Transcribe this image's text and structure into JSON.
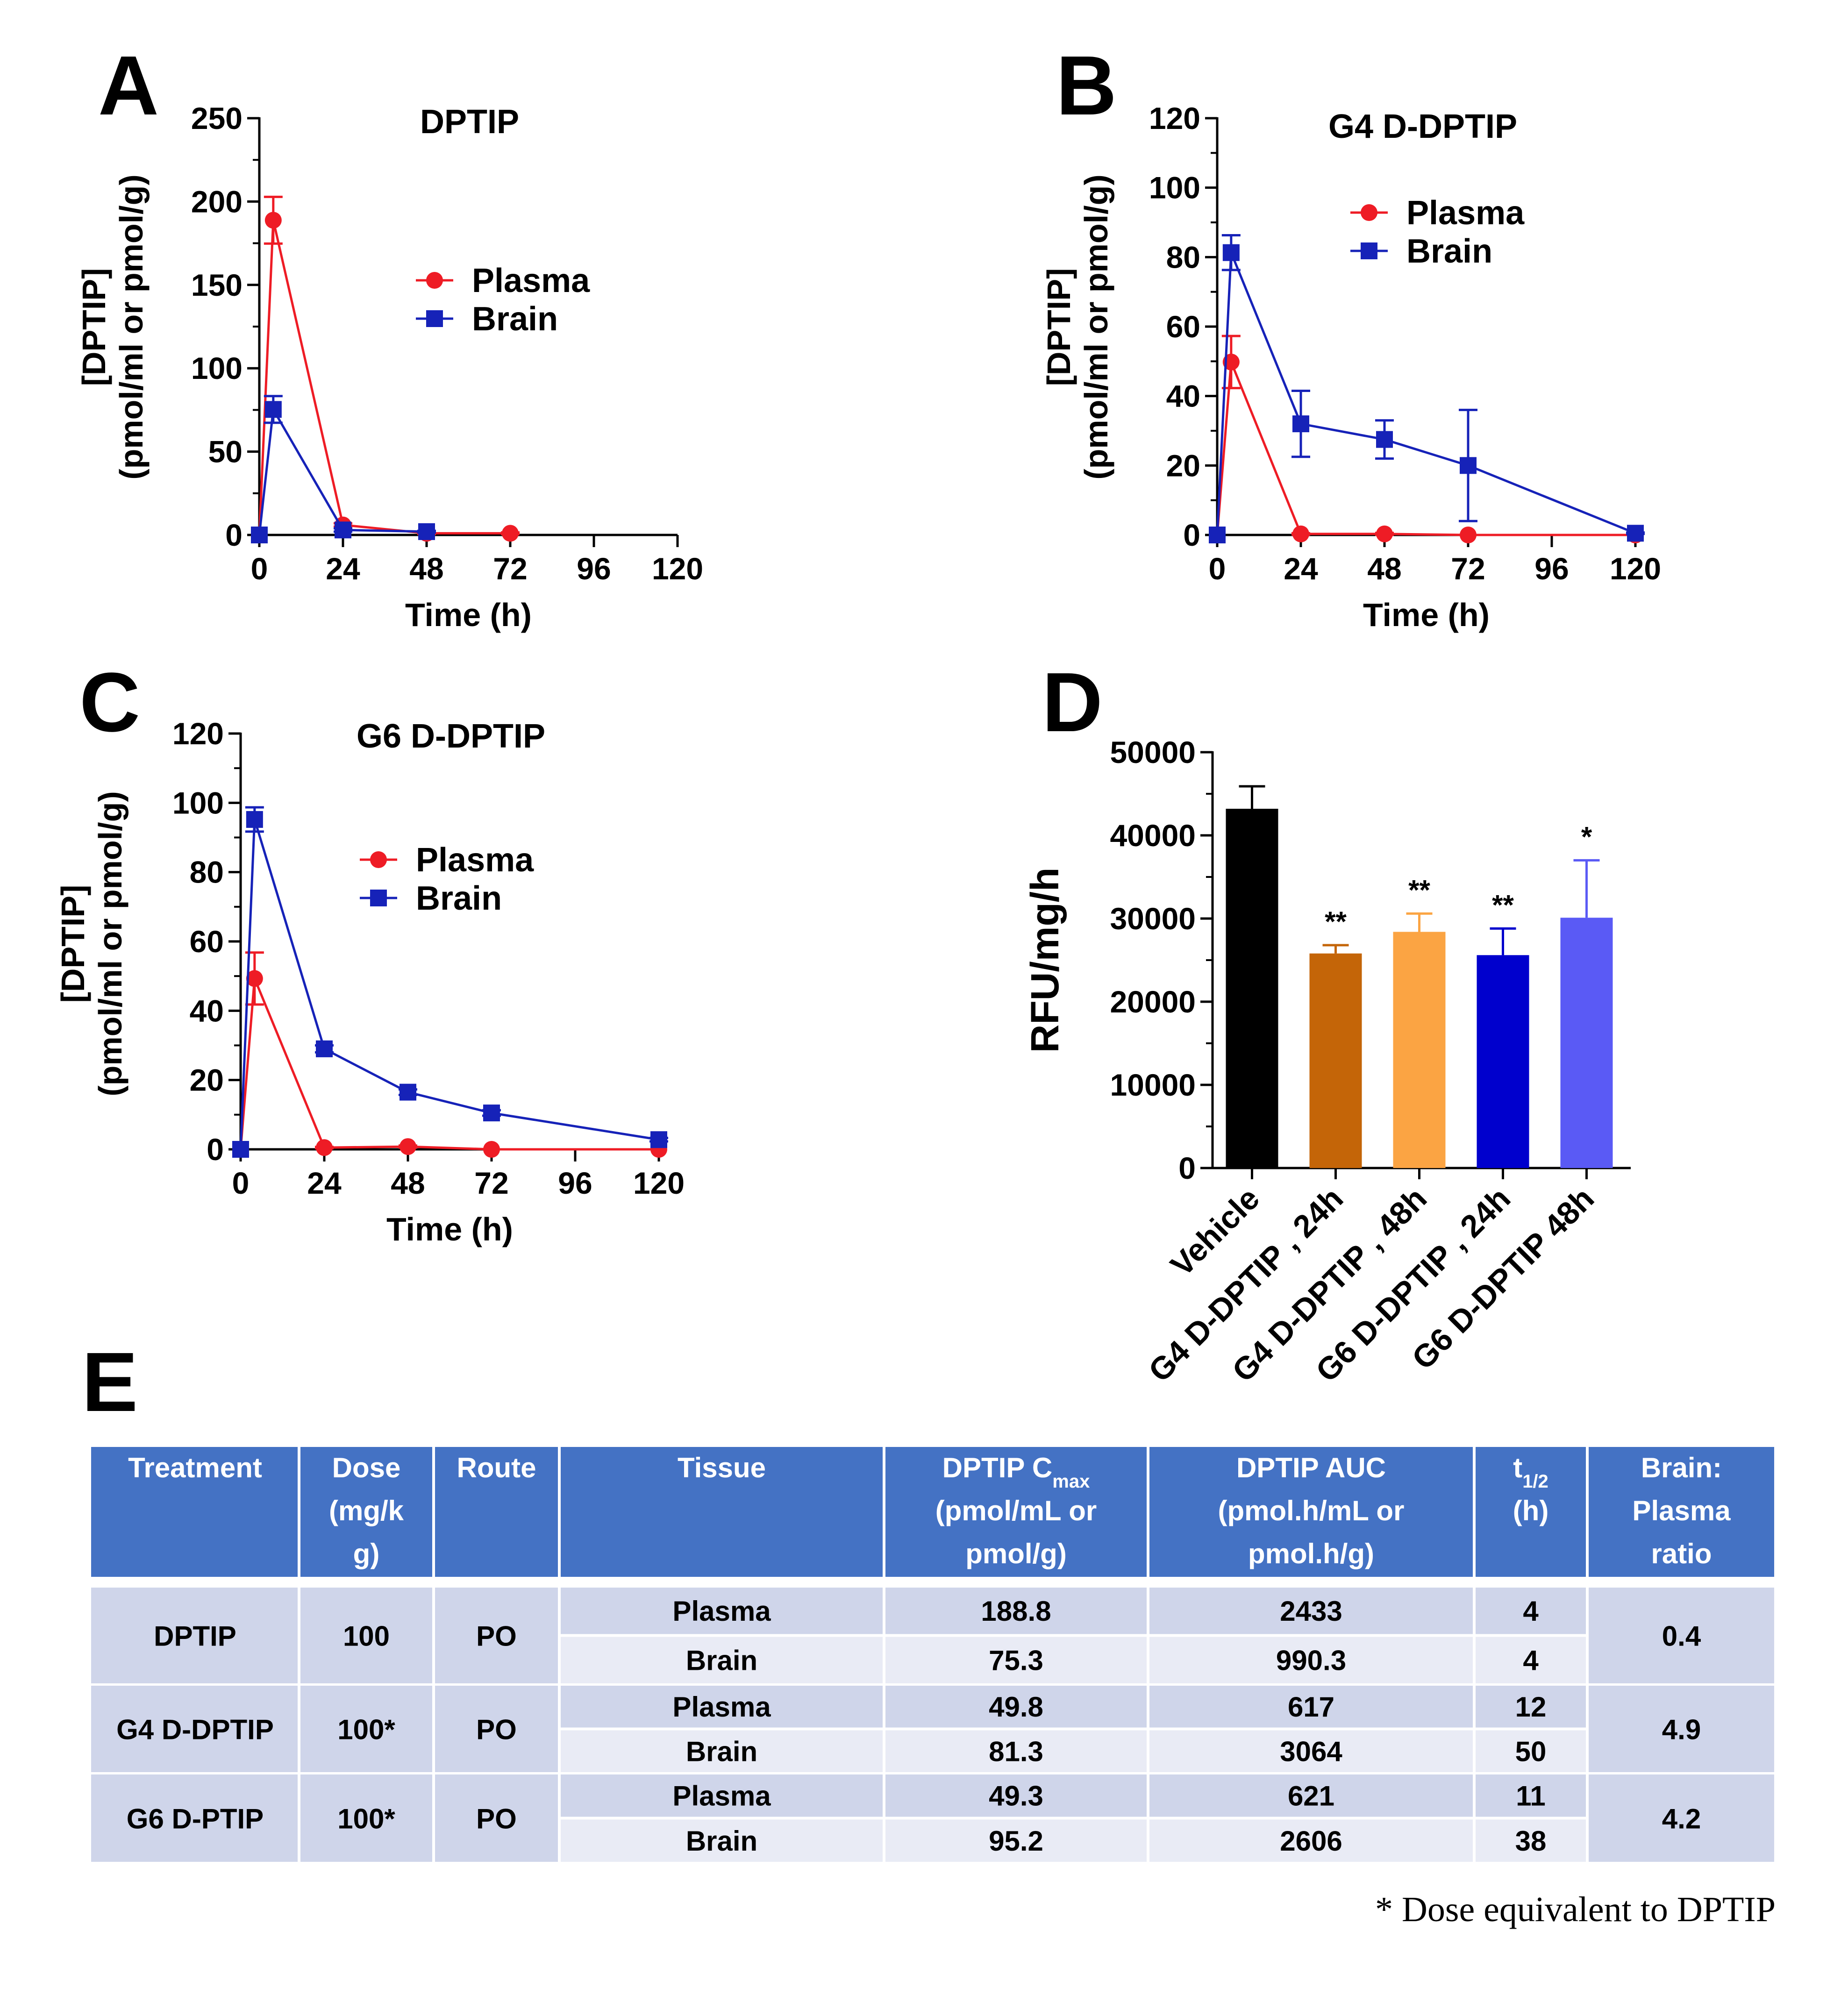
{
  "colors": {
    "plasma": "#ee1c25",
    "brain": "#1622b8",
    "vehicle": "#000000",
    "g4_24h": "#c46508",
    "g4_48h": "#fba443",
    "g6_24h": "#0000cd",
    "g6_48h": "#5a5af5",
    "table_header": "#4472c4",
    "row_dark": "#cfd5ea",
    "row_light": "#e9ebf5"
  },
  "panels": {
    "A": {
      "letter": "A"
    },
    "B": {
      "letter": "B"
    },
    "C": {
      "letter": "C"
    },
    "D": {
      "letter": "D"
    },
    "E": {
      "letter": "E"
    }
  },
  "chart_data": [
    {
      "id": "A",
      "type": "line",
      "title": "DPTIP",
      "xlabel": "Time (h)",
      "ylabel": [
        "[DPTIP]",
        "(pmol/ml or pmol/g)"
      ],
      "xlim": [
        0,
        120
      ],
      "xticks": [
        0,
        24,
        48,
        72,
        96,
        120
      ],
      "ylim": [
        0,
        250
      ],
      "yticks": [
        0,
        50,
        100,
        150,
        200,
        250
      ],
      "yminor": 25,
      "legend": "upper-middle",
      "series": [
        {
          "name": "Plasma",
          "marker": "circle",
          "x": [
            0,
            4,
            24,
            48,
            72
          ],
          "y": [
            0,
            188.8,
            6,
            1,
            1
          ],
          "err": [
            0,
            14,
            1,
            0.5,
            0.5
          ]
        },
        {
          "name": "Brain",
          "marker": "square",
          "x": [
            0,
            4,
            24,
            48
          ],
          "y": [
            0,
            75.3,
            3,
            2
          ],
          "err": [
            0,
            8,
            1,
            0.5
          ]
        }
      ]
    },
    {
      "id": "B",
      "type": "line",
      "title": "G4 D-DPTIP",
      "xlabel": "Time (h)",
      "ylabel": [
        "[DPTIP]",
        "(pmol/ml or pmol/g)"
      ],
      "xlim": [
        0,
        120
      ],
      "xticks": [
        0,
        24,
        48,
        72,
        96,
        120
      ],
      "ylim": [
        0,
        120
      ],
      "yticks": [
        0,
        20,
        40,
        60,
        80,
        100,
        120
      ],
      "yminor": 10,
      "legend": "upper-middle",
      "series": [
        {
          "name": "Plasma",
          "marker": "circle",
          "x": [
            0,
            4,
            24,
            48,
            72,
            120
          ],
          "y": [
            0,
            49.8,
            0.3,
            0.3,
            0,
            0
          ],
          "err": [
            0,
            7.5,
            0.2,
            0.3,
            0,
            0
          ]
        },
        {
          "name": "Brain",
          "marker": "square",
          "x": [
            0,
            4,
            24,
            48,
            72,
            120
          ],
          "y": [
            0,
            81.3,
            32,
            27.5,
            20,
            0.5
          ],
          "err": [
            0,
            5,
            9.5,
            5.5,
            16,
            0.2
          ]
        }
      ]
    },
    {
      "id": "C",
      "type": "line",
      "title": "G6 D-DPTIP",
      "xlabel": "Time (h)",
      "ylabel": [
        "[DPTIP]",
        "(pmol/ml or pmol/g)"
      ],
      "xlim": [
        0,
        120
      ],
      "xticks": [
        0,
        24,
        48,
        72,
        96,
        120
      ],
      "ylim": [
        0,
        120
      ],
      "yticks": [
        0,
        20,
        40,
        60,
        80,
        100,
        120
      ],
      "yminor": 10,
      "legend": "upper-middle",
      "series": [
        {
          "name": "Plasma",
          "marker": "circle",
          "x": [
            0,
            4,
            24,
            48,
            72,
            120
          ],
          "y": [
            0,
            49.3,
            0.5,
            0.8,
            0,
            0
          ],
          "err": [
            0,
            7.5,
            0.2,
            0.3,
            0,
            0
          ]
        },
        {
          "name": "Brain",
          "marker": "square",
          "x": [
            0,
            4,
            24,
            48,
            72,
            120
          ],
          "y": [
            0,
            95.2,
            29,
            16.5,
            10.5,
            2.8
          ],
          "err": [
            0,
            3.5,
            1,
            0.8,
            0.8,
            0.5
          ]
        }
      ]
    },
    {
      "id": "D",
      "type": "bar",
      "ylabel": "RFU/mg/h",
      "ylim": [
        0,
        50000
      ],
      "yticks": [
        0,
        10000,
        20000,
        30000,
        40000,
        50000
      ],
      "yminor": 5000,
      "categories": [
        "Vehicle",
        "G4 D-DPTIP , 24h",
        "G4 D-DPTIP , 48h",
        "G6 D-DPTIP , 24h",
        "G6 D-DPTIP 48h"
      ],
      "values": [
        43200,
        25800,
        28400,
        25600,
        30100
      ],
      "errors": [
        2700,
        1000,
        2200,
        3200,
        6900
      ],
      "significance": [
        "",
        "**",
        "**",
        "**",
        "*"
      ]
    }
  ],
  "table": {
    "headers": [
      [
        "Treatment"
      ],
      [
        "Dose",
        "(mg/k",
        "g)"
      ],
      [
        "Route"
      ],
      [
        "Tissue"
      ],
      [
        "DPTIP C",
        "(pmol/mL or",
        "pmol/g)"
      ],
      [
        "DPTIP AUC",
        "(pmol.h/mL or",
        "pmol.h/g)"
      ],
      [
        "t",
        "(h)"
      ],
      [
        "Brain:",
        "Plasma",
        "ratio"
      ]
    ],
    "cmax_subscript": "max",
    "thalf_subscript": "1/2",
    "groups": [
      {
        "treatment": "DPTIP",
        "dose": "100",
        "route": "PO",
        "ratio": "0.4",
        "rows": [
          {
            "tissue": "Plasma",
            "cmax": "188.8",
            "auc": "2433",
            "thalf": "4"
          },
          {
            "tissue": "Brain",
            "cmax": "75.3",
            "auc": "990.3",
            "thalf": "4"
          }
        ]
      },
      {
        "treatment": "G4 D-DPTIP",
        "dose": "100*",
        "route": "PO",
        "ratio": "4.9",
        "rows": [
          {
            "tissue": "Plasma",
            "cmax": "49.8",
            "auc": "617",
            "thalf": "12"
          },
          {
            "tissue": "Brain",
            "cmax": "81.3",
            "auc": "3064",
            "thalf": "50"
          }
        ]
      },
      {
        "treatment": "G6 D-PTIP",
        "dose": "100*",
        "route": "PO",
        "ratio": "4.2",
        "rows": [
          {
            "tissue": "Plasma",
            "cmax": "49.3",
            "auc": "621",
            "thalf": "11"
          },
          {
            "tissue": "Brain",
            "cmax": "95.2",
            "auc": "2606",
            "thalf": "38"
          }
        ]
      }
    ],
    "footnote": "* Dose equivalent to DPTIP"
  }
}
